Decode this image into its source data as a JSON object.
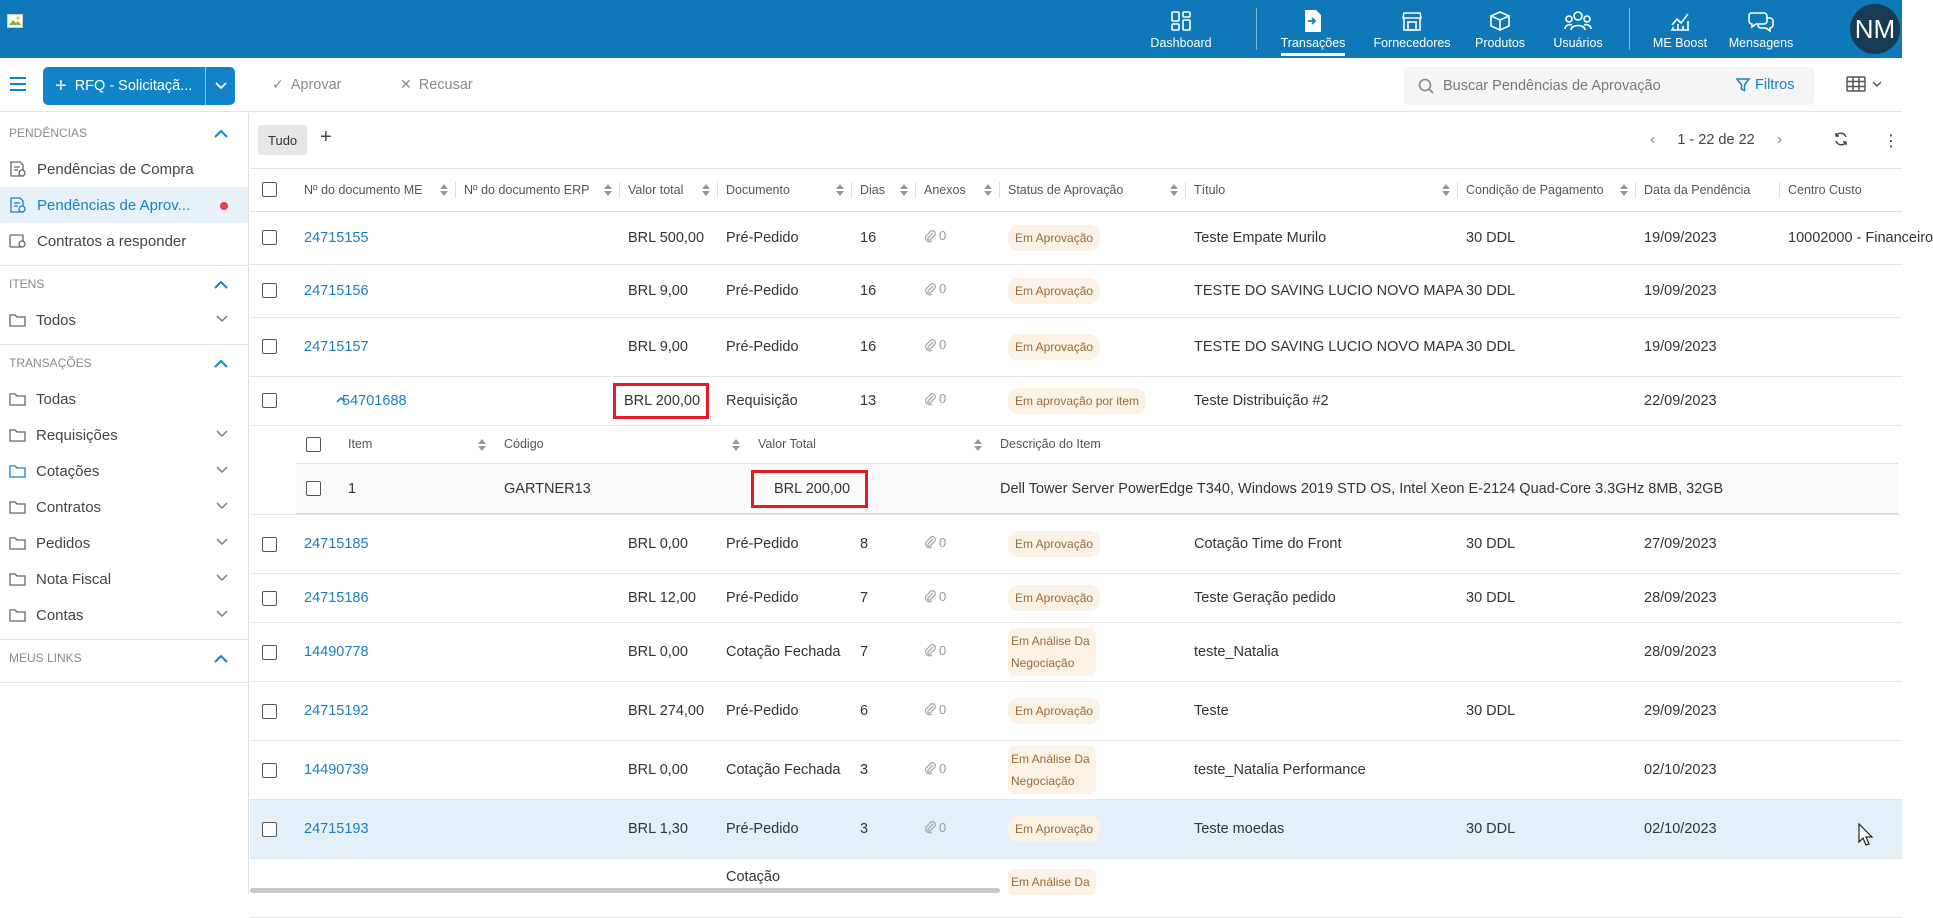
{
  "nav": {
    "items": [
      {
        "label": "Dashboard",
        "icon": "dashboard-icon"
      },
      {
        "label": "Transações",
        "icon": "transactions-icon",
        "active": true
      },
      {
        "label": "Fornecedores",
        "icon": "store-icon"
      },
      {
        "label": "Produtos",
        "icon": "box-icon"
      },
      {
        "label": "Usuários",
        "icon": "users-icon"
      },
      {
        "label": "ME Boost",
        "icon": "chart-icon"
      },
      {
        "label": "Mensagens",
        "icon": "messages-icon"
      }
    ],
    "avatar": "NM"
  },
  "toolbar": {
    "rfq_label": "RFQ - Solicitaçã...",
    "aprovar": "Aprovar",
    "recusar": "Recusar",
    "search_placeholder": "Buscar Pendências de Aprovação",
    "filtros": "Filtros"
  },
  "sidebar": {
    "sections": [
      {
        "title": "PENDÊNCIAS",
        "items": [
          "Pendências de Compra",
          "Pendências de Aprov...",
          "Contratos a responder"
        ]
      },
      {
        "title": "ITENS",
        "items": [
          "Todos"
        ]
      },
      {
        "title": "TRANSAÇÕES",
        "items": [
          "Todas",
          "Requisições",
          "Cotações",
          "Contratos",
          "Pedidos",
          "Nota Fiscal",
          "Contas"
        ]
      },
      {
        "title": "MEUS LINKS",
        "items": []
      }
    ]
  },
  "subtoolbar": {
    "tab": "Tudo",
    "add": "+",
    "pager": "1 - 22 de 22"
  },
  "table": {
    "headers": [
      "Nº do documento ME",
      "Nº do documento ERP",
      "Valor total",
      "Documento",
      "Dias",
      "Anexos",
      "Status de Aprovação",
      "Título",
      "Condição de Pagamento",
      "Data da Pendência",
      "Centro Custo"
    ],
    "rows": [
      {
        "doc": "24715155",
        "valor": "BRL 500,00",
        "documento": "Pré-Pedido",
        "dias": "16",
        "anexos": "0",
        "status": "Em Aprovação",
        "titulo": "Teste Empate Murilo",
        "cond": "30 DDL",
        "data": "19/09/2023",
        "centro": "10002000 - Financeiro"
      },
      {
        "doc": "24715156",
        "valor": "BRL 9,00",
        "documento": "Pré-Pedido",
        "dias": "16",
        "anexos": "0",
        "status": "Em Aprovação",
        "titulo": "TESTE DO SAVING LUCIO NOVO MAPA",
        "cond": "30 DDL",
        "data": "19/09/2023",
        "centro": ""
      },
      {
        "doc": "24715157",
        "valor": "BRL 9,00",
        "documento": "Pré-Pedido",
        "dias": "16",
        "anexos": "0",
        "status": "Em Aprovação",
        "titulo": "TESTE DO SAVING LUCIO NOVO MAPA",
        "cond": "30 DDL",
        "data": "19/09/2023",
        "centro": ""
      },
      {
        "doc": "54701688",
        "valor": "BRL 200,00",
        "documento": "Requisição",
        "dias": "13",
        "anexos": "0",
        "status": "Em aprovação por item",
        "titulo": "Teste Distribuição #2",
        "cond": "",
        "data": "22/09/2023",
        "centro": ""
      },
      {
        "doc": "24715185",
        "valor": "BRL 0,00",
        "documento": "Pré-Pedido",
        "dias": "8",
        "anexos": "0",
        "status": "Em Aprovação",
        "titulo": "Cotação Time do Front",
        "cond": "30 DDL",
        "data": "27/09/2023",
        "centro": ""
      },
      {
        "doc": "24715186",
        "valor": "BRL 12,00",
        "documento": "Pré-Pedido",
        "dias": "7",
        "anexos": "0",
        "status": "Em Aprovação",
        "titulo": "Teste Geração pedido",
        "cond": "30 DDL",
        "data": "28/09/2023",
        "centro": ""
      },
      {
        "doc": "14490778",
        "valor": "BRL 0,00",
        "documento": "Cotação Fechada",
        "dias": "7",
        "anexos": "0",
        "status": "Em Análise Da Negociação",
        "titulo": "teste_Natalia",
        "cond": "",
        "data": "28/09/2023",
        "centro": ""
      },
      {
        "doc": "24715192",
        "valor": "BRL 274,00",
        "documento": "Pré-Pedido",
        "dias": "6",
        "anexos": "0",
        "status": "Em Aprovação",
        "titulo": "Teste",
        "cond": "30 DDL",
        "data": "29/09/2023",
        "centro": ""
      },
      {
        "doc": "14490739",
        "valor": "BRL 0,00",
        "documento": "Cotação Fechada",
        "dias": "3",
        "anexos": "0",
        "status": "Em Análise Da Negociação",
        "titulo": "teste_Natalia Performance",
        "cond": "",
        "data": "02/10/2023",
        "centro": ""
      },
      {
        "doc": "24715193",
        "valor": "BRL 1,30",
        "documento": "Pré-Pedido",
        "dias": "3",
        "anexos": "0",
        "status": "Em Aprovação",
        "titulo": "Teste moedas",
        "cond": "30 DDL",
        "data": "02/10/2023",
        "centro": ""
      },
      {
        "doc": "",
        "valor": "",
        "documento": "Cotação",
        "dias": "",
        "anexos": "",
        "status": "Em Análise Da",
        "titulo": "",
        "cond": "",
        "data": "",
        "centro": ""
      }
    ]
  },
  "subtable": {
    "headers": [
      "Item",
      "Código",
      "Valor Total",
      "Descrição do Item"
    ],
    "row": {
      "item": "1",
      "codigo": "GARTNER13",
      "valor": "BRL 200,00",
      "descricao": "Dell Tower Server PowerEdge T340, Windows 2019 STD OS, Intel Xeon E-2124 Quad-Core 3.3GHz 8MB, 32GB"
    }
  },
  "colors": {
    "brand": "#0f78b8",
    "button": "#1183c8",
    "link": "#1a7ec0",
    "highlight": "#e01b24"
  }
}
